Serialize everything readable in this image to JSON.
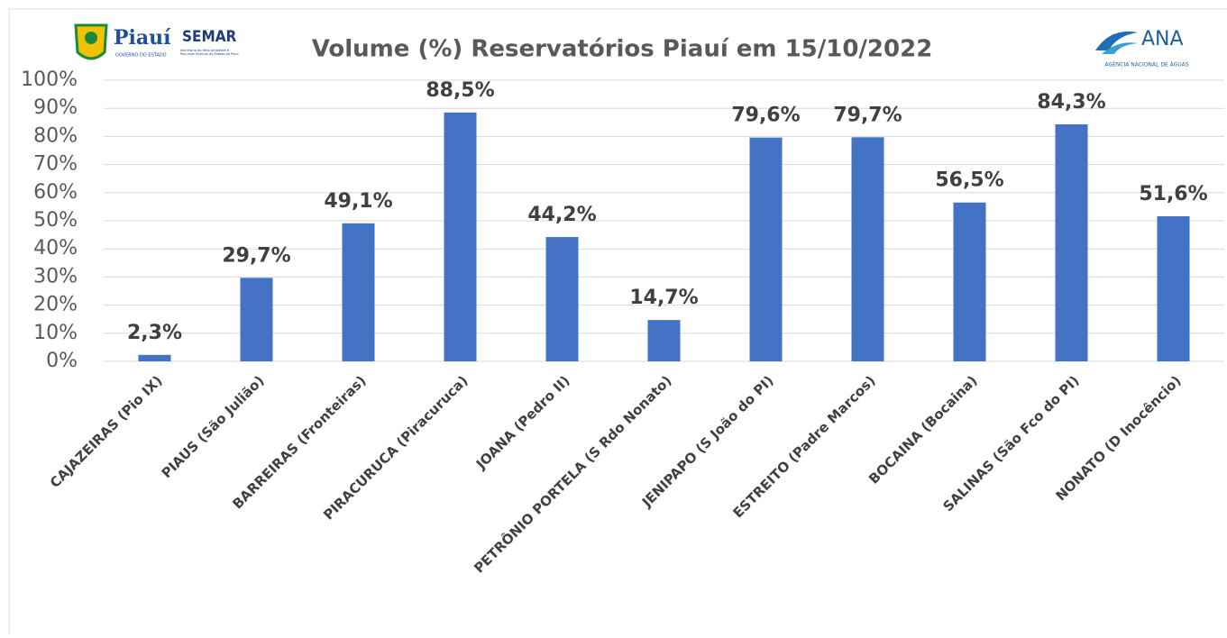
{
  "chart_data": {
    "type": "bar",
    "title": "Volume (%)   Reservatórios Piauí em 15/10/2022",
    "logos": {
      "piaui": "Piauí",
      "piaui_sub": "GOVERNO DO ESTADO",
      "semar": "SEMAR",
      "semar_sub": "Secretaria do Meio Ambiente e Recursos Hídricos do Estado do Piauí",
      "ana": "ANA",
      "ana_sub": "AGÊNCIA NACIONAL DE ÁGUAS"
    },
    "categories": [
      "CAJAZEIRAS (Pio IX)",
      "PIAUS (São Julião)",
      "BARREIRAS (Fronteiras)",
      "PIRACURUCA (Piracuruca)",
      "JOANA (Pedro II)",
      "PETRÔNIO PORTELA (S Rdo Nonato)",
      "JENIPAPO (S João do PI)",
      "ESTREITO (Padre Marcos)",
      "BOCAINA (Bocaina)",
      "SALINAS (São Fco do PI)",
      "NONATO (D Inocêncio)"
    ],
    "values": [
      2.3,
      29.7,
      49.1,
      88.5,
      44.2,
      14.7,
      79.6,
      79.7,
      56.5,
      84.3,
      51.6
    ],
    "value_labels": [
      "2,3%",
      "29,7%",
      "49,1%",
      "88,5%",
      "44,2%",
      "14,7%",
      "79,6%",
      "79,7%",
      "56,5%",
      "84,3%",
      "51,6%"
    ],
    "color": "#4472c4",
    "ylim": [
      0,
      100
    ],
    "yticks": [
      {
        "value": 0,
        "label": "0%"
      },
      {
        "value": 10,
        "label": "10%"
      },
      {
        "value": 20,
        "label": "20%"
      },
      {
        "value": 30,
        "label": "30%"
      },
      {
        "value": 40,
        "label": "40%"
      },
      {
        "value": 50,
        "label": "50%"
      },
      {
        "value": 60,
        "label": "60%"
      },
      {
        "value": 70,
        "label": "70%"
      },
      {
        "value": 80,
        "label": "80%"
      },
      {
        "value": 90,
        "label": "90%"
      },
      {
        "value": 100,
        "label": "100%"
      }
    ],
    "grid": true
  }
}
